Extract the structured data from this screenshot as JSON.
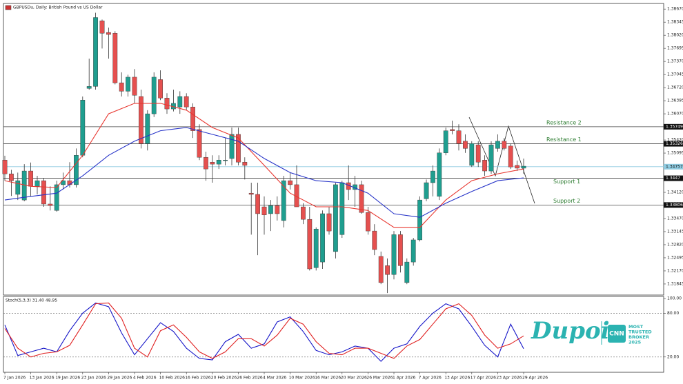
{
  "header": {
    "title": "GBPUSDu, Daily:  British Pound vs US Dollar"
  },
  "watermark": {
    "brand": "Dupoin",
    "badge": "CNN",
    "lines": [
      "MOST",
      "TRUSTED",
      "BROKER",
      "2025"
    ]
  },
  "chart_data": [
    {
      "type": "candlestick",
      "categories": [
        "7 Jan 2026",
        null,
        null,
        null,
        "13 Jan 2026",
        null,
        null,
        null,
        "19 Jan 2026",
        null,
        null,
        null,
        "23 Jan 2026",
        null,
        null,
        null,
        "29 Jan 2026",
        null,
        null,
        null,
        "4 Feb 2026",
        null,
        null,
        null,
        "10 Feb 2026",
        null,
        null,
        null,
        "16 Feb 2026",
        null,
        null,
        null,
        "20 Feb 2026",
        null,
        null,
        null,
        "26 Feb 2026",
        null,
        null,
        null,
        "4 Mar 2026",
        null,
        null,
        null,
        "10 Mar 2026",
        null,
        null,
        null,
        "16 Mar 2026",
        null,
        null,
        null,
        "20 Mar 2026",
        null,
        null,
        null,
        "26 Mar 2026",
        null,
        null,
        null,
        "1 Apr 2026",
        null,
        null,
        null,
        "7 Apr 2026",
        null,
        null,
        null,
        "13 Apr 2026",
        null,
        null,
        null,
        "17 Apr 2026",
        null,
        null,
        null,
        "23 Apr 2026",
        null,
        null,
        null,
        "29 Apr 2026"
      ],
      "open": [
        1.3492,
        1.3458,
        1.3407,
        1.3393,
        1.3465,
        1.3427,
        1.3441,
        1.3383,
        1.3367,
        1.3431,
        1.3441,
        1.3431,
        1.3504,
        1.367,
        1.3675,
        1.3838,
        1.3809,
        1.3807,
        1.3684,
        1.3663,
        1.3698,
        1.365,
        1.3533,
        1.3607,
        1.3692,
        1.3646,
        1.3619,
        1.3624,
        1.365,
        1.3624,
        1.3568,
        1.3499,
        1.3487,
        1.3482,
        1.3491,
        1.3496,
        1.3556,
        1.3487,
        1.341,
        1.3407,
        1.3376,
        1.3359,
        1.3379,
        1.3342,
        1.3441,
        1.3431,
        1.3376,
        1.3345,
        1.3225,
        1.3239,
        1.3359,
        1.3265,
        1.3307,
        1.3436,
        1.3419,
        1.3431,
        1.3362,
        1.3316,
        1.3253,
        1.323,
        1.3208,
        1.3307,
        1.3188,
        1.3239,
        1.3294,
        1.3396,
        1.3436,
        1.3402,
        1.351,
        1.3568,
        1.3565,
        1.3539,
        1.3479,
        1.353,
        1.3492,
        1.3465,
        1.3521,
        1.3539,
        1.3527,
        1.3479,
        1.3472
      ],
      "high": [
        1.3503,
        1.3468,
        1.3461,
        1.3482,
        1.3486,
        1.3453,
        1.3448,
        1.3427,
        1.3441,
        1.3461,
        1.3487,
        1.3521,
        1.365,
        1.3744,
        1.3858,
        1.3841,
        1.3821,
        1.3812,
        1.371,
        1.3704,
        1.3718,
        1.3667,
        1.3616,
        1.371,
        1.3715,
        1.3658,
        1.3667,
        1.3663,
        1.3658,
        1.3633,
        1.3581,
        1.3513,
        1.3504,
        1.3504,
        1.3547,
        1.3573,
        1.3573,
        1.3499,
        1.3436,
        1.3436,
        1.3402,
        1.3393,
        1.3402,
        1.3453,
        1.3461,
        1.3479,
        1.3385,
        1.3376,
        1.3325,
        1.3367,
        1.3376,
        1.3436,
        1.3441,
        1.3479,
        1.3453,
        1.3441,
        1.3376,
        1.3333,
        1.3265,
        1.3248,
        1.3316,
        1.3316,
        1.3248,
        1.3299,
        1.3402,
        1.3444,
        1.3479,
        1.3521,
        1.3573,
        1.359,
        1.3581,
        1.3556,
        1.3539,
        1.3539,
        1.3504,
        1.3539,
        1.3556,
        1.3547,
        1.3533,
        1.3491,
        1.3496
      ],
      "low": [
        1.3441,
        1.3403,
        1.3393,
        1.339,
        1.3402,
        1.3407,
        1.3376,
        1.3367,
        1.3364,
        1.3419,
        1.3424,
        1.3424,
        1.3499,
        1.3667,
        1.3667,
        1.3769,
        1.3744,
        1.368,
        1.365,
        1.365,
        1.3633,
        1.3521,
        1.3516,
        1.3599,
        1.3641,
        1.3607,
        1.3613,
        1.3607,
        1.3616,
        1.3547,
        1.3492,
        1.3441,
        1.3436,
        1.347,
        1.3479,
        1.3479,
        1.3479,
        1.3444,
        1.3307,
        1.3256,
        1.3307,
        1.3316,
        1.3342,
        1.3325,
        1.3419,
        1.3376,
        1.3333,
        1.3218,
        1.3218,
        1.3222,
        1.3307,
        1.3248,
        1.3299,
        1.3393,
        1.3376,
        1.3359,
        1.3307,
        1.3256,
        1.3184,
        1.3162,
        1.3196,
        1.3213,
        1.3184,
        1.323,
        1.329,
        1.339,
        1.3402,
        1.3393,
        1.3504,
        1.3556,
        1.3516,
        1.351,
        1.3475,
        1.3475,
        1.3453,
        1.3458,
        1.3513,
        1.3516,
        1.347,
        1.3465,
        1.3458
      ],
      "close": [
        1.3458,
        1.3441,
        1.3441,
        1.3465,
        1.3427,
        1.3441,
        1.3383,
        1.3379,
        1.3431,
        1.3441,
        1.3431,
        1.3504,
        1.3641,
        1.3675,
        1.3846,
        1.3807,
        1.3804,
        1.3684,
        1.3663,
        1.3698,
        1.3653,
        1.3533,
        1.3607,
        1.3698,
        1.3646,
        1.3619,
        1.3633,
        1.365,
        1.3624,
        1.3565,
        1.3499,
        1.347,
        1.3482,
        1.3492,
        1.3492,
        1.3556,
        1.3487,
        1.3479,
        1.3407,
        1.3359,
        1.3356,
        1.3379,
        1.3359,
        1.3441,
        1.3431,
        1.3376,
        1.3345,
        1.3222,
        1.3321,
        1.3359,
        1.3316,
        1.3431,
        1.3436,
        1.3419,
        1.3431,
        1.3362,
        1.3316,
        1.327,
        1.3188,
        1.3208,
        1.3307,
        1.323,
        1.3239,
        1.3294,
        1.3393,
        1.3436,
        1.3465,
        1.351,
        1.3565,
        1.3565,
        1.3533,
        1.3521,
        1.3533,
        1.3487,
        1.3465,
        1.353,
        1.3539,
        1.3521,
        1.3475,
        1.3472,
        1.3477
      ],
      "up_color": "#1f9e8f",
      "down_color": "#e5504f",
      "ylim": [
        1.3157,
        1.3881
      ],
      "yticks": [
        {
          "value": 1.3867,
          "label": "1.38670"
        },
        1.38345,
        {
          "value": 1.3802,
          "label": "1.38020"
        },
        1.37695,
        {
          "value": 1.3737,
          "label": "1.37370"
        },
        1.37045,
        {
          "value": 1.3672,
          "label": "1.36720"
        },
        1.36395,
        {
          "value": 1.3607,
          "label": "1.36070"
        },
        {
          "value": 1.3542,
          "label": "1.35420"
        },
        1.35095,
        {
          "value": 1.3412,
          "label": "1.34120"
        },
        {
          "value": 1.3347,
          "label": "1.33470"
        },
        1.33145,
        {
          "value": 1.3282,
          "label": "1.32820"
        },
        1.32495,
        {
          "value": 1.3217,
          "label": "1.32170"
        },
        1.31845
      ],
      "overlays": [
        {
          "color": "#e8362f",
          "x": [
            0,
            4,
            8,
            12,
            16,
            20,
            24,
            28,
            32,
            36,
            40,
            44,
            48,
            52,
            56,
            60,
            64,
            68,
            72,
            76,
            80
          ],
          "values": [
            1.3441,
            1.3427,
            1.3424,
            1.3504,
            1.3607,
            1.3633,
            1.3633,
            1.3616,
            1.3573,
            1.3547,
            1.3479,
            1.341,
            1.3376,
            1.3376,
            1.3367,
            1.3325,
            1.3325,
            1.3393,
            1.3441,
            1.3458,
            1.347
          ]
        },
        {
          "color": "#2633c8",
          "x": [
            0,
            4,
            8,
            12,
            16,
            20,
            24,
            28,
            32,
            36,
            40,
            44,
            48,
            52,
            56,
            60,
            64,
            68,
            72,
            76,
            80
          ],
          "values": [
            1.3393,
            1.3402,
            1.341,
            1.3453,
            1.3504,
            1.3539,
            1.3565,
            1.3573,
            1.3556,
            1.3539,
            1.3496,
            1.3461,
            1.3441,
            1.3436,
            1.341,
            1.3359,
            1.335,
            1.3385,
            1.3414,
            1.3441,
            1.3448
          ]
        }
      ],
      "levels": [
        {
          "name": "Resistance 2",
          "value": 1.35749,
          "color": "#444444"
        },
        {
          "name": "Resistance 1",
          "value": 1.35326,
          "color": "#444444"
        },
        {
          "value": 1.34757,
          "color": "#8fcbe0"
        },
        {
          "name": "Support 1",
          "value": 1.3447,
          "color": "#444444"
        },
        {
          "name": "Support 2",
          "value": 1.33806,
          "color": "#444444"
        }
      ]
    },
    {
      "type": "line",
      "title": "Stoch(5,3,3) 31.40 48.95",
      "x": [
        0,
        2,
        4,
        6,
        8,
        10,
        12,
        14,
        16,
        18,
        20,
        22,
        24,
        26,
        28,
        30,
        32,
        34,
        36,
        38,
        40,
        42,
        44,
        46,
        48,
        50,
        52,
        54,
        56,
        58,
        60,
        62,
        64,
        66,
        68,
        70,
        72,
        74,
        76,
        78,
        80
      ],
      "series": [
        {
          "color": "#1414c8",
          "values": [
            64,
            22,
            27,
            32,
            27,
            56,
            80,
            94,
            89,
            53,
            23,
            45,
            67,
            55,
            32,
            18,
            16,
            41,
            51,
            32,
            38,
            68,
            75,
            55,
            29,
            23,
            27,
            35,
            32,
            14,
            32,
            38,
            62,
            80,
            93,
            86,
            62,
            36,
            20,
            65,
            31.4
          ]
        },
        {
          "color": "#e02020",
          "values": [
            59,
            32,
            20,
            25,
            27,
            36,
            64,
            93,
            94,
            73,
            32,
            20,
            56,
            64,
            47,
            27,
            18,
            27,
            45,
            45,
            35,
            50,
            73,
            65,
            41,
            25,
            23,
            32,
            32,
            25,
            18,
            35,
            44,
            65,
            86,
            93,
            77,
            50,
            32,
            38,
            48.95
          ]
        }
      ],
      "ylim": [
        -1,
        103
      ],
      "yticks": [
        {
          "value": 100,
          "label": "100.00"
        },
        {
          "value": 80,
          "label": "80.00"
        },
        {
          "value": 20,
          "label": "20.00"
        }
      ],
      "dashed_levels": [
        80,
        20
      ]
    }
  ]
}
